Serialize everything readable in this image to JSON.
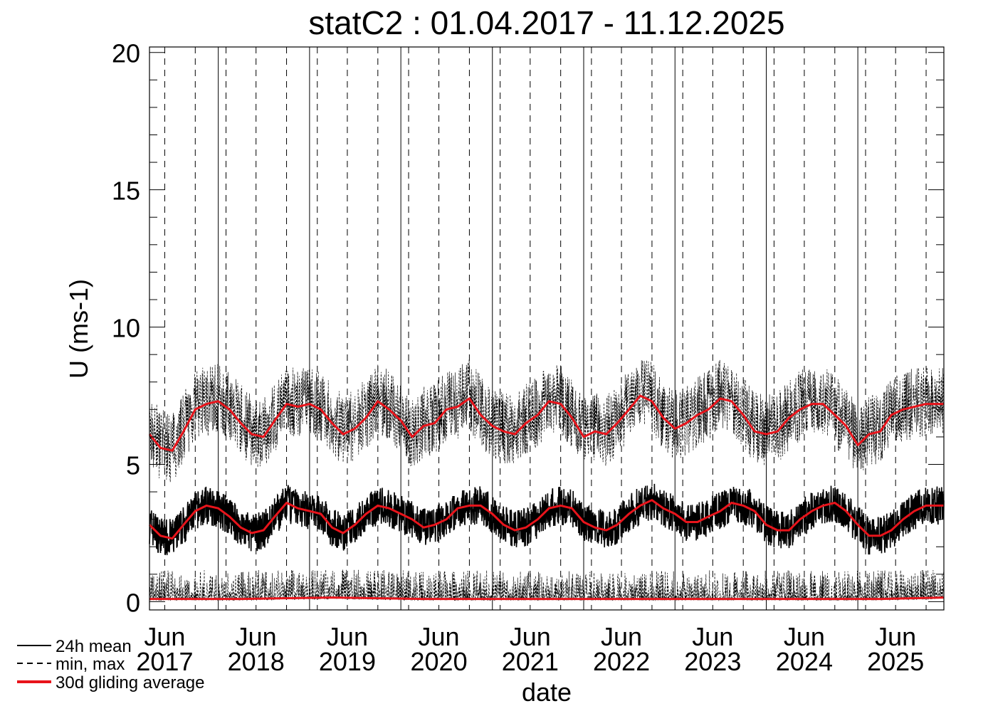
{
  "chart_data": {
    "type": "line",
    "title": "statC2 : 01.04.2017 - 11.12.2025",
    "xlabel": "date",
    "ylabel": "U (ms-1)",
    "ylim": [
      -0.3,
      20.2
    ],
    "xlim": [
      "2017-04-01",
      "2025-12-11"
    ],
    "yticks": [
      "0",
      "5",
      "10",
      "15",
      "20"
    ],
    "xticks": [
      {
        "month": "Jun",
        "year": "2017"
      },
      {
        "month": "Jun",
        "year": "2018"
      },
      {
        "month": "Jun",
        "year": "2019"
      },
      {
        "month": "Jun",
        "year": "2020"
      },
      {
        "month": "Jun",
        "year": "2021"
      },
      {
        "month": "Jun",
        "year": "2022"
      },
      {
        "month": "Jun",
        "year": "2023"
      },
      {
        "month": "Jun",
        "year": "2024"
      },
      {
        "month": "Jun",
        "year": "2025"
      }
    ],
    "year_start_lines": [
      "2018",
      "2019",
      "2020",
      "2021",
      "2022",
      "2023",
      "2024",
      "2025"
    ],
    "dashed_lines_months": [
      "Jun",
      "Oct",
      "Feb"
    ],
    "grid": false,
    "legend": {
      "placement": "bottom-left",
      "entries": [
        {
          "label": "24h mean",
          "style": "solid-thin",
          "color": "#000000"
        },
        {
          "label": "min, max",
          "style": "dashed",
          "color": "#000000"
        },
        {
          "label": "30d gliding average",
          "style": "solid-thick",
          "color": "#e8141b"
        }
      ]
    },
    "series": [
      {
        "name": "30d gliding average",
        "color": "#e8141b",
        "of": "24h mean",
        "x": [
          "2017-04-01",
          "2017-05-15",
          "2017-07-01",
          "2017-08-15",
          "2017-10-01",
          "2017-11-15",
          "2018-01-01",
          "2018-02-15",
          "2018-04-01",
          "2018-05-15",
          "2018-07-01",
          "2018-08-15",
          "2018-10-01",
          "2018-11-15",
          "2019-01-01",
          "2019-02-15",
          "2019-04-01",
          "2019-05-15",
          "2019-07-01",
          "2019-08-15",
          "2019-10-01",
          "2019-11-15",
          "2020-01-01",
          "2020-02-15",
          "2020-04-01",
          "2020-05-15",
          "2020-07-01",
          "2020-08-15",
          "2020-10-01",
          "2020-11-15",
          "2021-01-01",
          "2021-02-15",
          "2021-04-01",
          "2021-05-15",
          "2021-07-01",
          "2021-08-15",
          "2021-10-01",
          "2021-11-15",
          "2022-01-01",
          "2022-02-15",
          "2022-04-01",
          "2022-05-15",
          "2022-07-01",
          "2022-08-15",
          "2022-10-01",
          "2022-11-15",
          "2023-01-01",
          "2023-02-15",
          "2023-04-01",
          "2023-05-15",
          "2023-07-01",
          "2023-08-15",
          "2023-10-01",
          "2023-11-15",
          "2024-01-01",
          "2024-02-15",
          "2024-04-01",
          "2024-05-15",
          "2024-07-01",
          "2024-08-15",
          "2024-10-01",
          "2024-11-15",
          "2025-01-01",
          "2025-02-15",
          "2025-04-01",
          "2025-05-15",
          "2025-07-01",
          "2025-08-15",
          "2025-10-01",
          "2025-11-15",
          "2025-12-11"
        ],
        "values": [
          2.8,
          2.4,
          2.3,
          2.8,
          3.3,
          3.5,
          3.4,
          3.1,
          2.7,
          2.5,
          2.6,
          3.1,
          3.6,
          3.4,
          3.3,
          3.2,
          2.7,
          2.5,
          2.8,
          3.2,
          3.5,
          3.4,
          3.2,
          3.0,
          2.7,
          2.8,
          3.0,
          3.4,
          3.5,
          3.5,
          3.2,
          2.8,
          2.6,
          2.7,
          3.0,
          3.4,
          3.5,
          3.4,
          2.9,
          2.7,
          2.6,
          2.8,
          3.2,
          3.5,
          3.7,
          3.4,
          3.2,
          2.9,
          2.9,
          3.1,
          3.3,
          3.6,
          3.5,
          3.3,
          2.8,
          2.6,
          2.6,
          3.0,
          3.3,
          3.5,
          3.6,
          3.3,
          2.8,
          2.4,
          2.4,
          2.6,
          3.0,
          3.3,
          3.5,
          3.5,
          3.5
        ]
      },
      {
        "name": "30d gliding average",
        "color": "#e8141b",
        "of": "max",
        "x": [
          "2017-04-01",
          "2017-05-15",
          "2017-07-01",
          "2017-08-15",
          "2017-10-01",
          "2017-11-15",
          "2018-01-01",
          "2018-02-15",
          "2018-04-01",
          "2018-05-15",
          "2018-07-01",
          "2018-08-15",
          "2018-10-01",
          "2018-11-15",
          "2019-01-01",
          "2019-02-15",
          "2019-04-01",
          "2019-05-15",
          "2019-07-01",
          "2019-08-15",
          "2019-10-01",
          "2019-11-15",
          "2020-01-01",
          "2020-02-15",
          "2020-04-01",
          "2020-05-15",
          "2020-07-01",
          "2020-08-15",
          "2020-10-01",
          "2020-11-15",
          "2021-01-01",
          "2021-02-15",
          "2021-04-01",
          "2021-05-15",
          "2021-07-01",
          "2021-08-15",
          "2021-10-01",
          "2021-11-15",
          "2022-01-01",
          "2022-02-15",
          "2022-04-01",
          "2022-05-15",
          "2022-07-01",
          "2022-08-15",
          "2022-10-01",
          "2022-11-15",
          "2023-01-01",
          "2023-02-15",
          "2023-04-01",
          "2023-05-15",
          "2023-07-01",
          "2023-08-15",
          "2023-10-01",
          "2023-11-15",
          "2024-01-01",
          "2024-02-15",
          "2024-04-01",
          "2024-05-15",
          "2024-07-01",
          "2024-08-15",
          "2024-10-01",
          "2024-11-15",
          "2025-01-01",
          "2025-02-15",
          "2025-04-01",
          "2025-05-15",
          "2025-07-01",
          "2025-08-15",
          "2025-10-01",
          "2025-11-15",
          "2025-12-11"
        ],
        "values": [
          6.1,
          5.6,
          5.5,
          6.2,
          7.0,
          7.2,
          7.3,
          7.0,
          6.5,
          6.1,
          6.0,
          6.6,
          7.2,
          7.1,
          7.2,
          7.0,
          6.5,
          6.1,
          6.3,
          6.7,
          7.3,
          7.0,
          6.6,
          6.0,
          6.4,
          6.5,
          7.0,
          7.1,
          7.4,
          6.8,
          6.4,
          6.2,
          6.1,
          6.5,
          6.8,
          7.3,
          7.2,
          6.7,
          6.0,
          6.2,
          6.1,
          6.5,
          7.0,
          7.5,
          7.3,
          6.7,
          6.3,
          6.5,
          6.8,
          7.0,
          7.4,
          7.3,
          6.8,
          6.2,
          6.1,
          6.2,
          6.7,
          7.0,
          7.2,
          7.2,
          6.8,
          6.4,
          5.7,
          6.1,
          6.2,
          6.8,
          7.0,
          7.1,
          7.2,
          7.2,
          7.2
        ]
      },
      {
        "name": "30d gliding average",
        "color": "#e8141b",
        "of": "min",
        "x": [
          "2017-04-01",
          "2018-04-01",
          "2019-04-01",
          "2020-04-01",
          "2021-04-01",
          "2022-04-01",
          "2023-04-01",
          "2024-04-01",
          "2025-04-01",
          "2025-12-11"
        ],
        "values": [
          0.1,
          0.1,
          0.15,
          0.1,
          0.1,
          0.1,
          0.1,
          0.1,
          0.1,
          0.15
        ]
      }
    ]
  }
}
